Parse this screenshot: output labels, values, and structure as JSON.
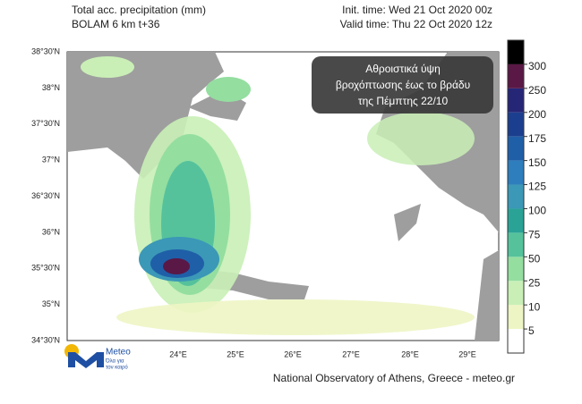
{
  "header": {
    "title": "Total acc. precipitation (mm)",
    "model": "BOLAM 6 km t+36",
    "init_time": "Init. time: Wed 21 Oct 2020 00z",
    "valid_time": "Valid time: Thu 22 Oct 2020 12z"
  },
  "callout": {
    "lines": [
      "Αθροιστικά ύψη",
      "βροχόπτωσης έως το βράδυ",
      "της Πέμπτης 22/10"
    ]
  },
  "map": {
    "lat_labels": [
      "38°30'N",
      "38°N",
      "37°30'N",
      "37°N",
      "36°30'N",
      "36°N",
      "35°30'N",
      "35°N",
      "34°30'N"
    ],
    "lon_labels": [
      "24°E",
      "25°E",
      "26°E",
      "27°E",
      "28°E",
      "29°E"
    ]
  },
  "colorbar": {
    "levels": [
      5,
      10,
      25,
      50,
      75,
      100,
      125,
      150,
      175,
      200,
      250,
      300
    ],
    "colors": [
      "#ffffff",
      "#eef5c4",
      "#c9efb6",
      "#94dea0",
      "#55c29c",
      "#2aa396",
      "#3b98b7",
      "#2e7dbd",
      "#1f5fa8",
      "#1b3f8e",
      "#262677",
      "#5a1846",
      "#000000"
    ]
  },
  "logo": {
    "name": "Meteo",
    "tagline": [
      "Όλα για",
      "τον καιρό"
    ]
  },
  "footer": {
    "credit": "National Observatory of Athens, Greece - meteo.gr"
  }
}
